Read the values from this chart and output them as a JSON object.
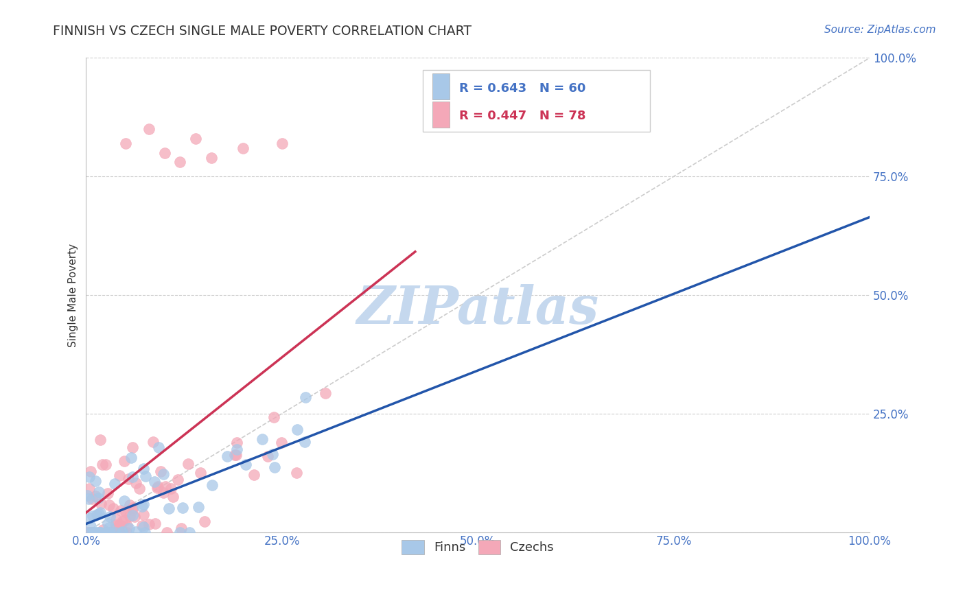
{
  "title": "FINNISH VS CZECH SINGLE MALE POVERTY CORRELATION CHART",
  "source": "Source: ZipAtlas.com",
  "ylabel": "Single Male Poverty",
  "finns_R": 0.643,
  "finns_N": 60,
  "czechs_R": 0.447,
  "czechs_N": 78,
  "finns_color": "#A8C8E8",
  "czechs_color": "#F4A8B8",
  "finns_line_color": "#2255AA",
  "czechs_line_color": "#CC3355",
  "diagonal_color": "#CCCCCC",
  "watermark": "ZIPatlas",
  "watermark_color": "#C5D8EE",
  "legend_finns_text": "R = 0.643   N = 60",
  "legend_czechs_text": "R = 0.447   N = 78",
  "legend_finns_color": "#4472C4",
  "legend_czechs_color": "#CC3355",
  "bottom_legend_finns": "Finns",
  "bottom_legend_czechs": "Czechs",
  "title_color": "#333333",
  "source_color": "#4472C4",
  "tick_color": "#4472C4",
  "grid_color": "#CCCCCC",
  "ylabel_color": "#333333"
}
